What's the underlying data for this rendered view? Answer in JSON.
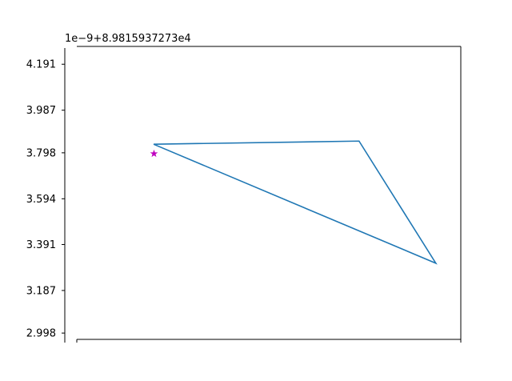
{
  "chart_data": {
    "type": "line",
    "title": "",
    "xlabel": "",
    "ylabel": "",
    "y_offset_label": "1e−9+8.9815937273e4",
    "y_axis_unit": "1e-9 offset from 8.9815937273e4",
    "xlim": [
      0,
      100
    ],
    "ylim": [
      2.97,
      4.27
    ],
    "y_ticks": [
      {
        "value": 2.998,
        "label": "2.998"
      },
      {
        "value": 3.187,
        "label": "3.187"
      },
      {
        "value": 3.391,
        "label": "3.391"
      },
      {
        "value": 3.594,
        "label": "3.594"
      },
      {
        "value": 3.798,
        "label": "3.798"
      },
      {
        "value": 3.987,
        "label": "3.987"
      },
      {
        "value": 4.191,
        "label": "4.191"
      }
    ],
    "x_tick_labels_shown": false,
    "grid": false,
    "legend": "none",
    "series": [
      {
        "type": "line",
        "color": "#1f77b4",
        "x": [
          20,
          73.5,
          93.5,
          20
        ],
        "y": [
          3.836,
          3.85,
          3.308,
          3.836
        ]
      },
      {
        "type": "scatter",
        "marker": "star",
        "color": "#bf00bf",
        "x": [
          20.1
        ],
        "y": [
          3.794
        ]
      }
    ]
  }
}
